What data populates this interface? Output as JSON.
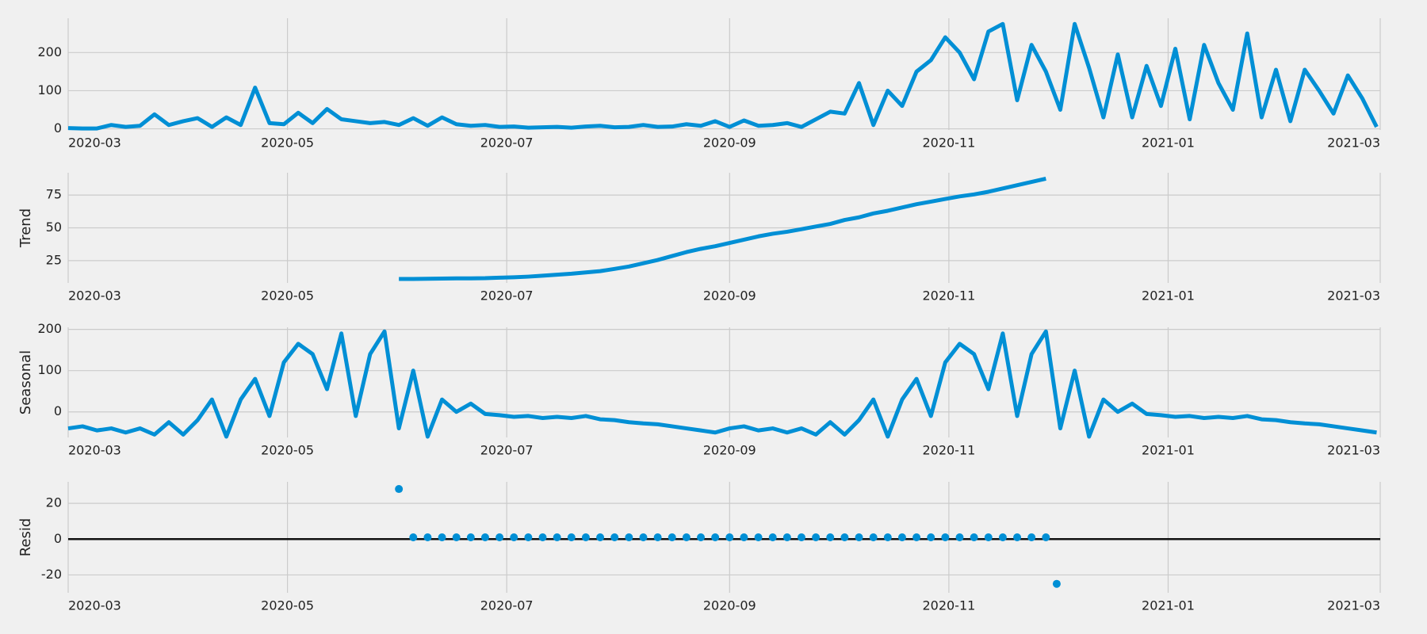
{
  "chart_data": [
    {
      "type": "line",
      "color": "#008fd5",
      "grid": true,
      "xlim": [
        0,
        365
      ],
      "ylim": [
        -3,
        290
      ],
      "xticks": [
        {
          "value": 0,
          "label": "2020-03"
        },
        {
          "value": 61,
          "label": "2020-05"
        },
        {
          "value": 122,
          "label": "2020-07"
        },
        {
          "value": 184,
          "label": "2020-09"
        },
        {
          "value": 245,
          "label": "2020-11"
        },
        {
          "value": 306,
          "label": "2021-01"
        },
        {
          "value": 365,
          "label": "2021-03"
        }
      ],
      "yticks": [
        0,
        100,
        200
      ],
      "x": [
        0,
        4,
        8,
        12,
        16,
        20,
        24,
        28,
        32,
        36,
        40,
        44,
        48,
        52,
        56,
        60,
        64,
        68,
        72,
        76,
        80,
        84,
        88,
        92,
        96,
        100,
        104,
        108,
        112,
        116,
        120,
        124,
        128,
        132,
        136,
        140,
        144,
        148,
        152,
        156,
        160,
        164,
        168,
        172,
        176,
        180,
        184,
        188,
        192,
        196,
        200,
        204,
        208,
        212,
        216,
        220,
        224,
        228,
        232,
        236,
        240,
        244,
        248,
        252,
        256,
        260,
        264,
        268,
        272,
        276,
        280,
        284,
        288,
        292,
        296,
        300,
        304,
        308,
        312,
        316,
        320,
        324,
        328,
        332,
        336,
        340,
        344,
        348,
        352,
        356,
        360,
        364
      ],
      "values": [
        2,
        1,
        1,
        10,
        5,
        8,
        38,
        10,
        20,
        28,
        5,
        30,
        10,
        108,
        15,
        12,
        42,
        15,
        52,
        25,
        20,
        15,
        18,
        10,
        28,
        8,
        30,
        12,
        8,
        10,
        5,
        6,
        3,
        4,
        5,
        3,
        6,
        8,
        4,
        5,
        10,
        5,
        6,
        12,
        8,
        20,
        5,
        22,
        8,
        10,
        15,
        5,
        25,
        45,
        40,
        120,
        10,
        100,
        60,
        150,
        180,
        240,
        200,
        130,
        255,
        275,
        75,
        220,
        150,
        50,
        275,
        160,
        30,
        195,
        30,
        165,
        60,
        210,
        25,
        220,
        120,
        50,
        250,
        30,
        155,
        20,
        155,
        100,
        40,
        140,
        80,
        5
      ]
    },
    {
      "type": "line",
      "color": "#008fd5",
      "grid": true,
      "ylabel": "Trend",
      "xlim": [
        0,
        365
      ],
      "ylim": [
        8,
        92
      ],
      "xticks": [
        {
          "value": 0,
          "label": "2020-03"
        },
        {
          "value": 61,
          "label": "2020-05"
        },
        {
          "value": 122,
          "label": "2020-07"
        },
        {
          "value": 184,
          "label": "2020-09"
        },
        {
          "value": 245,
          "label": "2020-11"
        },
        {
          "value": 306,
          "label": "2021-01"
        },
        {
          "value": 365,
          "label": "2021-03"
        }
      ],
      "yticks": [
        25,
        50,
        75
      ],
      "x": [
        92,
        96,
        100,
        104,
        108,
        112,
        116,
        120,
        124,
        128,
        132,
        136,
        140,
        144,
        148,
        152,
        156,
        160,
        164,
        168,
        172,
        176,
        180,
        184,
        188,
        192,
        196,
        200,
        204,
        208,
        212,
        216,
        220,
        224,
        228,
        232,
        236,
        240,
        244,
        248,
        252,
        256,
        260,
        264,
        268,
        272
      ],
      "values": [
        11,
        11,
        11.2,
        11.3,
        11.5,
        11.5,
        11.6,
        12,
        12.3,
        12.8,
        13.5,
        14.3,
        15,
        16,
        17,
        18.7,
        20.5,
        23,
        25.5,
        28.5,
        31.5,
        34,
        36,
        38.5,
        41,
        43.5,
        45.5,
        47,
        49,
        51,
        53,
        56,
        58,
        61,
        63,
        65.5,
        68,
        70,
        72,
        74,
        75.5,
        77.5,
        80,
        82.5,
        85,
        87.5
      ]
    },
    {
      "type": "line",
      "color": "#008fd5",
      "grid": true,
      "ylabel": "Seasonal",
      "xlim": [
        0,
        365
      ],
      "ylim": [
        -62,
        205
      ],
      "xticks": [
        {
          "value": 0,
          "label": "2020-03"
        },
        {
          "value": 61,
          "label": "2020-05"
        },
        {
          "value": 122,
          "label": "2020-07"
        },
        {
          "value": 184,
          "label": "2020-09"
        },
        {
          "value": 245,
          "label": "2020-11"
        },
        {
          "value": 306,
          "label": "2021-01"
        },
        {
          "value": 365,
          "label": "2021-03"
        }
      ],
      "yticks": [
        0,
        100,
        200
      ],
      "x": [
        0,
        4,
        8,
        12,
        16,
        20,
        24,
        28,
        32,
        36,
        40,
        44,
        48,
        52,
        56,
        60,
        64,
        68,
        72,
        76,
        80,
        84,
        88,
        92,
        96,
        100,
        104,
        108,
        112,
        116,
        120,
        124,
        128,
        132,
        136,
        140,
        144,
        148,
        152,
        156,
        160,
        164,
        168,
        172,
        176,
        180,
        184,
        188,
        192,
        196,
        200,
        204,
        208,
        212,
        216,
        220,
        224,
        228,
        232,
        236,
        240,
        244,
        248,
        252,
        256,
        260,
        264,
        268,
        272,
        276,
        280,
        284,
        288,
        292,
        296,
        300,
        304,
        308,
        312,
        316,
        320,
        324,
        328,
        332,
        336,
        340,
        344,
        348,
        352,
        356,
        360,
        364
      ],
      "values": [
        -40,
        -35,
        -45,
        -40,
        -50,
        -40,
        -55,
        -25,
        -55,
        -20,
        30,
        -60,
        30,
        80,
        -10,
        120,
        165,
        140,
        55,
        190,
        -10,
        140,
        195,
        -40,
        100,
        -60,
        30,
        0,
        20,
        -5,
        -8,
        -12,
        -10,
        -15,
        -12,
        -15,
        -10,
        -18,
        -20,
        -25,
        -28,
        -30,
        -35,
        -40,
        -45,
        -50,
        -40,
        -35,
        -45,
        -40,
        -50,
        -40,
        -55,
        -25,
        -55,
        -20,
        30,
        -60,
        30,
        80,
        -10,
        120,
        165,
        140,
        55,
        190,
        -10,
        140,
        195,
        -40,
        100,
        -60,
        30,
        0,
        20,
        -5,
        -8,
        -12,
        -10,
        -15,
        -12,
        -15,
        -10,
        -18,
        -20,
        -25,
        -28,
        -30,
        -35,
        -40,
        -45,
        -50
      ]
    },
    {
      "type": "scatter",
      "color": "#008fd5",
      "grid": true,
      "ylabel": "Resid",
      "xlim": [
        0,
        365
      ],
      "ylim": [
        -30,
        32
      ],
      "xticks": [
        {
          "value": 0,
          "label": "2020-03"
        },
        {
          "value": 61,
          "label": "2020-05"
        },
        {
          "value": 122,
          "label": "2020-07"
        },
        {
          "value": 184,
          "label": "2020-09"
        },
        {
          "value": 245,
          "label": "2020-11"
        },
        {
          "value": 306,
          "label": "2021-01"
        },
        {
          "value": 365,
          "label": "2021-03"
        }
      ],
      "yticks": [
        -20,
        0,
        20
      ],
      "x": [
        92,
        96,
        100,
        104,
        108,
        112,
        116,
        120,
        124,
        128,
        132,
        136,
        140,
        144,
        148,
        152,
        156,
        160,
        164,
        168,
        172,
        176,
        180,
        184,
        188,
        192,
        196,
        200,
        204,
        208,
        212,
        216,
        220,
        224,
        228,
        232,
        236,
        240,
        244,
        248,
        252,
        256,
        260,
        264,
        268,
        272,
        275
      ],
      "values": [
        28,
        1,
        1,
        1,
        1,
        1,
        1,
        1,
        1,
        1,
        1,
        1,
        1,
        1,
        1,
        1,
        1,
        1,
        1,
        1,
        1,
        1,
        1,
        1,
        1,
        1,
        1,
        1,
        1,
        1,
        1,
        1,
        1,
        1,
        1,
        1,
        1,
        1,
        1,
        1,
        1,
        1,
        1,
        1,
        1,
        1,
        -25
      ]
    }
  ]
}
